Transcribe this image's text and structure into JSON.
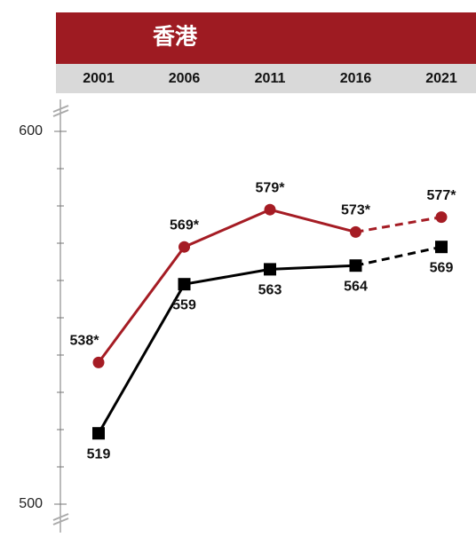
{
  "chart_data": {
    "type": "line",
    "title": "香港",
    "categories": [
      "2001",
      "2006",
      "2011",
      "2016",
      "2021"
    ],
    "series": [
      {
        "color": "#a51c24",
        "marker": "circle",
        "values": [
          538,
          569,
          579,
          573,
          577
        ],
        "value_labels": [
          "538*",
          "569*",
          "579*",
          "573*",
          "577*"
        ],
        "label_position": "above"
      },
      {
        "color": "#000000",
        "marker": "square",
        "values": [
          519,
          559,
          563,
          564,
          569
        ],
        "label_position": "below"
      }
    ],
    "dashed_from": "2016",
    "ylim": [
      500,
      600
    ],
    "yticks": [
      500,
      600
    ],
    "minor_yticks": [
      510,
      520,
      530,
      540,
      550,
      560,
      570,
      580,
      590
    ],
    "header_color": "#9e1b22",
    "band_color": "#d9d9d9"
  }
}
